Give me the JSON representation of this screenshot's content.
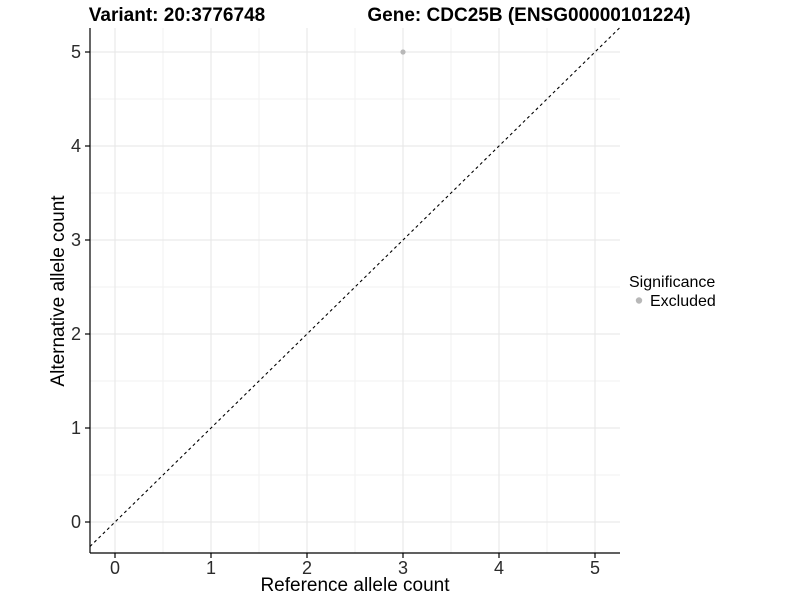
{
  "chart_data": {
    "type": "scatter",
    "title_left": "Variant: 20:3776748",
    "title_right": "Gene: CDC25B (ENSG00000101224)",
    "xlabel": "Reference allele count",
    "ylabel": "Alternative allele count",
    "x_ticks": [
      "0",
      "1",
      "2",
      "3",
      "4",
      "5"
    ],
    "y_ticks": [
      "0",
      "1",
      "2",
      "3",
      "4",
      "5"
    ],
    "xlim": [
      -0.26,
      5.26
    ],
    "ylim": [
      -0.33,
      5.26
    ],
    "grid": true,
    "identity_line": {
      "slope": 1,
      "intercept": 0,
      "linetype": "dashed",
      "color": "#000000"
    },
    "series": [
      {
        "name": "Excluded",
        "color": "#b8b8b8",
        "point_radius": 2.6,
        "points": [
          {
            "x": 3,
            "y": 5
          }
        ]
      }
    ],
    "legend": {
      "title": "Significance",
      "position": "right",
      "items": [
        {
          "label": "Excluded",
          "color": "#b8b8b8"
        }
      ]
    },
    "colors": {
      "background": "#ffffff",
      "grid_major": "#e5e5e5",
      "grid_minor": "#f2f2f2",
      "axis_line": "#000000",
      "tick_label": "#2b2b2b"
    }
  }
}
